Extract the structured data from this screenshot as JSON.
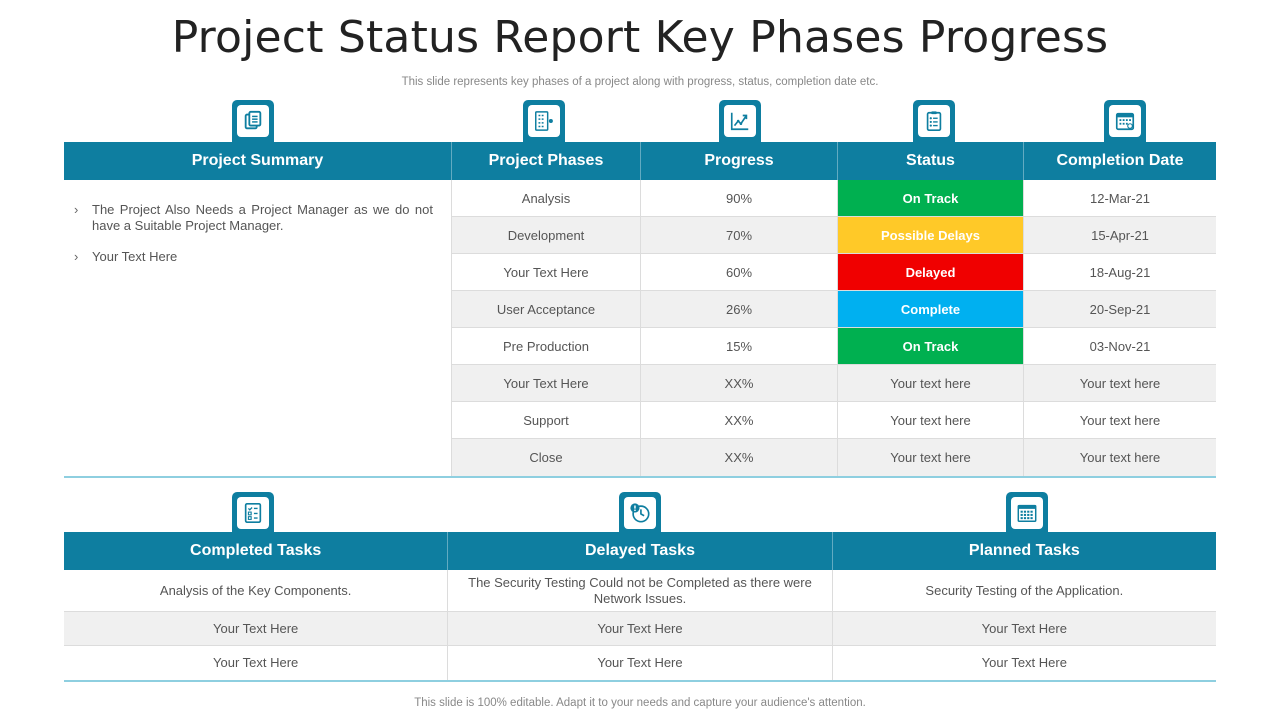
{
  "title": "Project Status Report Key Phases Progress",
  "subtitle": "This slide represents key phases of a project along with progress, status, completion date etc.",
  "footer": "This slide is 100% editable. Adapt it to your needs and capture your audience's attention.",
  "icons": {
    "summary": "document-list-icon",
    "phases": "checklist-panel-icon",
    "progress": "line-chart-icon",
    "status": "clipboard-icon",
    "completion": "calendar-icon",
    "completed": "task-checklist-icon",
    "delayed": "clock-alert-icon",
    "planned": "calendar-grid-icon"
  },
  "colors": {
    "header": "#0e7ea0",
    "on_track": "#00b050",
    "possible_delays": "#ffc928",
    "delayed": "#f00000",
    "complete": "#00b0f0"
  },
  "top_table": {
    "headers": [
      "Project Summary",
      "Project Phases",
      "Progress",
      "Status",
      "Completion Date"
    ],
    "summary": [
      "The Project Also Needs a Project Manager as we do not have a Suitable Project Manager.",
      "Your Text Here"
    ],
    "rows": [
      {
        "phase": "Analysis",
        "progress": "90%",
        "status": "On Track",
        "status_type": "on_track",
        "date": "12-Mar-21"
      },
      {
        "phase": "Development",
        "progress": "70%",
        "status": "Possible Delays",
        "status_type": "possible_delays",
        "date": "15-Apr-21"
      },
      {
        "phase": "Your Text Here",
        "progress": "60%",
        "status": "Delayed",
        "status_type": "delayed",
        "date": "18-Aug-21"
      },
      {
        "phase": "User Acceptance",
        "progress": "26%",
        "status": "Complete",
        "status_type": "complete",
        "date": "20-Sep-21"
      },
      {
        "phase": "Pre Production",
        "progress": "15%",
        "status": "On Track",
        "status_type": "on_track",
        "date": "03-Nov-21"
      },
      {
        "phase": "Your Text Here",
        "progress": "XX%",
        "status": "Your text here",
        "status_type": "plain",
        "date": "Your text here"
      },
      {
        "phase": "Support",
        "progress": "XX%",
        "status": "Your text here",
        "status_type": "plain",
        "date": "Your text here"
      },
      {
        "phase": "Close",
        "progress": "XX%",
        "status": "Your text here",
        "status_type": "plain",
        "date": "Your text here"
      }
    ]
  },
  "bottom_table": {
    "headers": [
      "Completed Tasks",
      "Delayed Tasks",
      "Planned Tasks"
    ],
    "rows": [
      [
        "Analysis of the Key Components.",
        "The Security Testing Could not be Completed as there were Network Issues.",
        "Security Testing of the Application."
      ],
      [
        "Your Text Here",
        "Your Text Here",
        "Your Text Here"
      ],
      [
        "Your Text Here",
        "Your Text Here",
        "Your Text Here"
      ]
    ]
  }
}
